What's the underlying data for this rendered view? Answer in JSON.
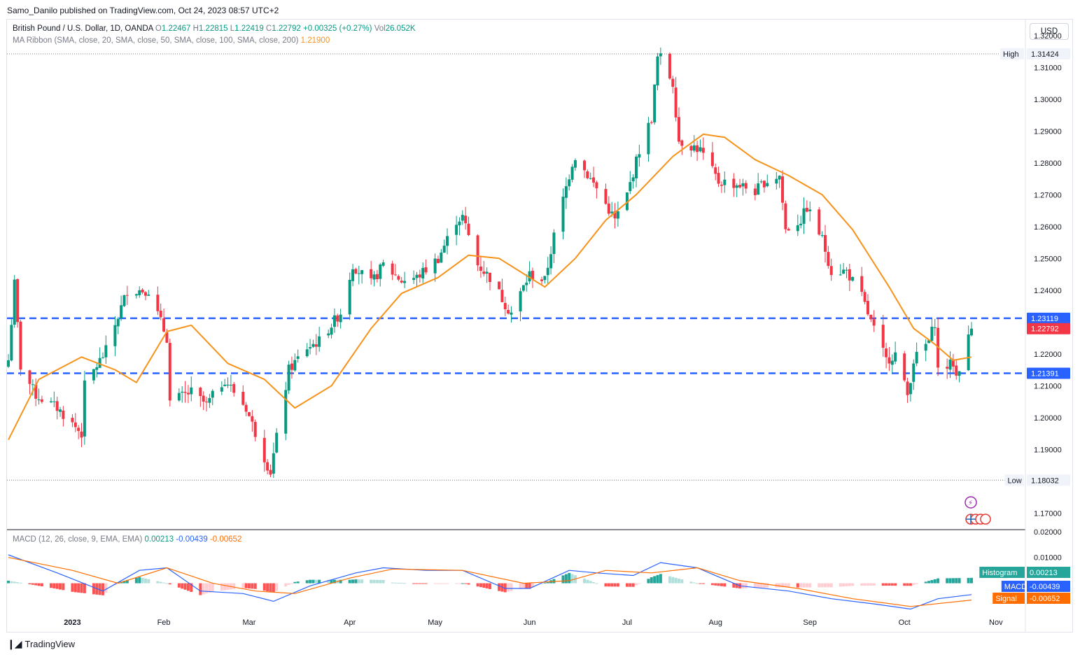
{
  "header": {
    "publisher_line": "Samo_Danilo published on TradingView.com, Oct 24, 2023 08:57 UTC+2"
  },
  "legend": {
    "symbol": "British Pound / U.S. Dollar, 1D, OANDA",
    "open_label": "O",
    "open": "1.22467",
    "high_label": "H",
    "high": "1.22815",
    "low_label": "L",
    "low": "1.22419",
    "close_label": "C",
    "close": "1.22792",
    "change": "+0.00325 (+0.27%)",
    "vol_label": "Vol",
    "vol": "26.052K",
    "ma_label": "MA Ribbon (SMA, close, 20, SMA, close, 50, SMA, close, 100, SMA, close, 200)",
    "ma_value": "1.21900",
    "macd_label": "MACD (12, 26, close, 9, EMA, EMA)",
    "macd_hist": "0.00213",
    "macd_line": "-0.00439",
    "macd_signal": "-0.00652"
  },
  "currency_button": "USD",
  "footer": {
    "brand": "TradingView"
  },
  "colors": {
    "up": "#089981",
    "down": "#f23645",
    "ma": "#f7931a",
    "macd": "#2962ff",
    "signal": "#ff6d00",
    "level": "#2962ff",
    "hist_up_strong": "#26a69a",
    "hist_up_weak": "#b2dfdb",
    "hist_down_strong": "#ff5252",
    "hist_down_weak": "#ffcdd2"
  },
  "chart_data": [
    {
      "type": "candlestick",
      "y_axis": {
        "min": 1.165,
        "max": 1.325,
        "ticks": [
          "1.17000",
          "1.18000",
          "1.19000",
          "1.20000",
          "1.21000",
          "1.22000",
          "1.23000",
          "1.24000",
          "1.25000",
          "1.26000",
          "1.27000",
          "1.28000",
          "1.29000",
          "1.30000",
          "1.31000",
          "1.32000"
        ]
      },
      "x_axis": {
        "labels": [
          "2023",
          "Feb",
          "Mar",
          "Apr",
          "May",
          "Jun",
          "Jul",
          "Aug",
          "Sep",
          "Oct",
          "Nov"
        ],
        "label_dates": [
          "2023-01-02",
          "2023-02-01",
          "2023-03-01",
          "2023-04-03",
          "2023-05-01",
          "2023-06-01",
          "2023-07-03",
          "2023-08-01",
          "2023-09-01",
          "2023-10-02",
          "2023-11-01"
        ]
      },
      "date_range": [
        "2022-12-12",
        "2023-10-24"
      ],
      "high_marker": {
        "label": "High",
        "value": "1.31424"
      },
      "low_marker": {
        "label": "Low",
        "value": "1.18032"
      },
      "levels": [
        {
          "value": "1.23119"
        },
        {
          "value": "1.21391"
        }
      ],
      "last_price": "1.22792",
      "close_path": [
        {
          "date": "2022-12-12",
          "close": 1.218
        },
        {
          "date": "2022-12-14",
          "close": 1.242
        },
        {
          "date": "2022-12-16",
          "close": 1.216
        },
        {
          "date": "2022-12-21",
          "close": 1.207
        },
        {
          "date": "2022-12-28",
          "close": 1.203
        },
        {
          "date": "2023-01-05",
          "close": 1.195
        },
        {
          "date": "2023-01-06",
          "close": 1.21
        },
        {
          "date": "2023-01-13",
          "close": 1.221
        },
        {
          "date": "2023-01-20",
          "close": 1.24
        },
        {
          "date": "2023-01-27",
          "close": 1.24
        },
        {
          "date": "2023-02-02",
          "close": 1.225
        },
        {
          "date": "2023-02-03",
          "close": 1.205
        },
        {
          "date": "2023-02-10",
          "close": 1.208
        },
        {
          "date": "2023-02-15",
          "close": 1.204
        },
        {
          "date": "2023-02-21",
          "close": 1.212
        },
        {
          "date": "2023-02-28",
          "close": 1.203
        },
        {
          "date": "2023-03-07",
          "close": 1.185
        },
        {
          "date": "2023-03-08",
          "close": 1.183
        },
        {
          "date": "2023-03-14",
          "close": 1.215
        },
        {
          "date": "2023-03-20",
          "close": 1.222
        },
        {
          "date": "2023-03-24",
          "close": 1.224
        },
        {
          "date": "2023-03-31",
          "close": 1.233
        },
        {
          "date": "2023-04-04",
          "close": 1.248
        },
        {
          "date": "2023-04-10",
          "close": 1.242
        },
        {
          "date": "2023-04-14",
          "close": 1.248
        },
        {
          "date": "2023-04-20",
          "close": 1.243
        },
        {
          "date": "2023-04-25",
          "close": 1.244
        },
        {
          "date": "2023-05-02",
          "close": 1.25
        },
        {
          "date": "2023-05-08",
          "close": 1.262
        },
        {
          "date": "2023-05-10",
          "close": 1.263
        },
        {
          "date": "2023-05-15",
          "close": 1.248
        },
        {
          "date": "2023-05-19",
          "close": 1.244
        },
        {
          "date": "2023-05-25",
          "close": 1.234
        },
        {
          "date": "2023-05-26",
          "close": 1.233
        },
        {
          "date": "2023-06-01",
          "close": 1.245
        },
        {
          "date": "2023-06-06",
          "close": 1.243
        },
        {
          "date": "2023-06-09",
          "close": 1.257
        },
        {
          "date": "2023-06-15",
          "close": 1.28
        },
        {
          "date": "2023-06-16",
          "close": 1.282
        },
        {
          "date": "2023-06-23",
          "close": 1.272
        },
        {
          "date": "2023-06-29",
          "close": 1.262
        },
        {
          "date": "2023-07-03",
          "close": 1.27
        },
        {
          "date": "2023-07-07",
          "close": 1.284
        },
        {
          "date": "2023-07-11",
          "close": 1.294
        },
        {
          "date": "2023-07-13",
          "close": 1.313
        },
        {
          "date": "2023-07-14",
          "close": 1.313
        },
        {
          "date": "2023-07-18",
          "close": 1.305
        },
        {
          "date": "2023-07-20",
          "close": 1.287
        },
        {
          "date": "2023-07-25",
          "close": 1.285
        },
        {
          "date": "2023-07-27",
          "close": 1.284
        },
        {
          "date": "2023-08-02",
          "close": 1.274
        },
        {
          "date": "2023-08-04",
          "close": 1.274
        },
        {
          "date": "2023-08-09",
          "close": 1.273
        },
        {
          "date": "2023-08-14",
          "close": 1.271
        },
        {
          "date": "2023-08-17",
          "close": 1.274
        },
        {
          "date": "2023-08-22",
          "close": 1.276
        },
        {
          "date": "2023-08-24",
          "close": 1.259
        },
        {
          "date": "2023-08-29",
          "close": 1.262
        },
        {
          "date": "2023-08-31",
          "close": 1.266
        },
        {
          "date": "2023-09-05",
          "close": 1.256
        },
        {
          "date": "2023-09-08",
          "close": 1.246
        },
        {
          "date": "2023-09-13",
          "close": 1.246
        },
        {
          "date": "2023-09-18",
          "close": 1.238
        },
        {
          "date": "2023-09-21",
          "close": 1.23
        },
        {
          "date": "2023-09-26",
          "close": 1.218
        },
        {
          "date": "2023-09-29",
          "close": 1.22
        },
        {
          "date": "2023-10-03",
          "close": 1.207
        },
        {
          "date": "2023-10-05",
          "close": 1.218
        },
        {
          "date": "2023-10-10",
          "close": 1.224
        },
        {
          "date": "2023-10-12",
          "close": 1.23
        },
        {
          "date": "2023-10-13",
          "close": 1.215
        },
        {
          "date": "2023-10-18",
          "close": 1.217
        },
        {
          "date": "2023-10-19",
          "close": 1.213
        },
        {
          "date": "2023-10-23",
          "close": 1.225
        },
        {
          "date": "2023-10-24",
          "close": 1.2279
        }
      ],
      "ma20_path": [
        {
          "date": "2022-12-12",
          "value": 1.193
        },
        {
          "date": "2022-12-22",
          "value": 1.212
        },
        {
          "date": "2023-01-05",
          "value": 1.219
        },
        {
          "date": "2023-01-16",
          "value": 1.215
        },
        {
          "date": "2023-01-23",
          "value": 1.211
        },
        {
          "date": "2023-02-02",
          "value": 1.227
        },
        {
          "date": "2023-02-10",
          "value": 1.229
        },
        {
          "date": "2023-02-22",
          "value": 1.217
        },
        {
          "date": "2023-03-06",
          "value": 1.212
        },
        {
          "date": "2023-03-16",
          "value": 1.203
        },
        {
          "date": "2023-03-28",
          "value": 1.21
        },
        {
          "date": "2023-04-10",
          "value": 1.228
        },
        {
          "date": "2023-04-20",
          "value": 1.239
        },
        {
          "date": "2023-05-02",
          "value": 1.244
        },
        {
          "date": "2023-05-12",
          "value": 1.251
        },
        {
          "date": "2023-05-22",
          "value": 1.25
        },
        {
          "date": "2023-06-06",
          "value": 1.241
        },
        {
          "date": "2023-06-16",
          "value": 1.25
        },
        {
          "date": "2023-06-26",
          "value": 1.262
        },
        {
          "date": "2023-07-06",
          "value": 1.27
        },
        {
          "date": "2023-07-18",
          "value": 1.282
        },
        {
          "date": "2023-07-28",
          "value": 1.289
        },
        {
          "date": "2023-08-04",
          "value": 1.288
        },
        {
          "date": "2023-08-14",
          "value": 1.281
        },
        {
          "date": "2023-08-25",
          "value": 1.276
        },
        {
          "date": "2023-09-05",
          "value": 1.27
        },
        {
          "date": "2023-09-15",
          "value": 1.259
        },
        {
          "date": "2023-09-27",
          "value": 1.241
        },
        {
          "date": "2023-10-05",
          "value": 1.228
        },
        {
          "date": "2023-10-12",
          "value": 1.223
        },
        {
          "date": "2023-10-18",
          "value": 1.218
        },
        {
          "date": "2023-10-24",
          "value": 1.219
        }
      ]
    },
    {
      "type": "macd",
      "y_axis": {
        "min": -0.0115,
        "max": 0.0205,
        "ticks": [
          "0.02000",
          "0.01000"
        ]
      },
      "histogram_last": "0.00213",
      "macd_last": "-0.00439",
      "signal_last": "-0.00652",
      "labels": {
        "histogram": "Histogram",
        "macd": "MACD",
        "signal": "Signal"
      },
      "macd_path": [
        {
          "date": "2022-12-12",
          "value": 0.011
        },
        {
          "date": "2022-12-28",
          "value": 0.004
        },
        {
          "date": "2023-01-12",
          "value": -0.003
        },
        {
          "date": "2023-01-24",
          "value": 0.005
        },
        {
          "date": "2023-02-02",
          "value": 0.006
        },
        {
          "date": "2023-02-13",
          "value": -0.003
        },
        {
          "date": "2023-02-27",
          "value": -0.004
        },
        {
          "date": "2023-03-09",
          "value": -0.007
        },
        {
          "date": "2023-03-21",
          "value": -0.001
        },
        {
          "date": "2023-04-05",
          "value": 0.004
        },
        {
          "date": "2023-04-14",
          "value": 0.006
        },
        {
          "date": "2023-04-28",
          "value": 0.005
        },
        {
          "date": "2023-05-10",
          "value": 0.005
        },
        {
          "date": "2023-05-24",
          "value": -0.002
        },
        {
          "date": "2023-06-01",
          "value": -0.002
        },
        {
          "date": "2023-06-14",
          "value": 0.005
        },
        {
          "date": "2023-06-23",
          "value": 0.004
        },
        {
          "date": "2023-07-05",
          "value": 0.003
        },
        {
          "date": "2023-07-14",
          "value": 0.008
        },
        {
          "date": "2023-07-26",
          "value": 0.006
        },
        {
          "date": "2023-08-09",
          "value": -0.001
        },
        {
          "date": "2023-08-25",
          "value": -0.003
        },
        {
          "date": "2023-09-08",
          "value": -0.006
        },
        {
          "date": "2023-09-22",
          "value": -0.008
        },
        {
          "date": "2023-10-04",
          "value": -0.01
        },
        {
          "date": "2023-10-13",
          "value": -0.006
        },
        {
          "date": "2023-10-24",
          "value": -0.0044
        }
      ],
      "signal_path": [
        {
          "date": "2022-12-12",
          "value": 0.01
        },
        {
          "date": "2023-01-02",
          "value": 0.005
        },
        {
          "date": "2023-01-17",
          "value": 0.0
        },
        {
          "date": "2023-02-02",
          "value": 0.006
        },
        {
          "date": "2023-02-17",
          "value": 0.0
        },
        {
          "date": "2023-03-03",
          "value": -0.003
        },
        {
          "date": "2023-03-16",
          "value": -0.004
        },
        {
          "date": "2023-04-03",
          "value": 0.002
        },
        {
          "date": "2023-04-17",
          "value": 0.0055
        },
        {
          "date": "2023-05-10",
          "value": 0.005
        },
        {
          "date": "2023-05-30",
          "value": 0.0
        },
        {
          "date": "2023-06-14",
          "value": 0.001
        },
        {
          "date": "2023-06-26",
          "value": 0.005
        },
        {
          "date": "2023-07-11",
          "value": 0.004
        },
        {
          "date": "2023-07-26",
          "value": 0.006
        },
        {
          "date": "2023-08-09",
          "value": 0.001
        },
        {
          "date": "2023-08-28",
          "value": -0.002
        },
        {
          "date": "2023-09-15",
          "value": -0.006
        },
        {
          "date": "2023-10-04",
          "value": -0.009
        },
        {
          "date": "2023-10-24",
          "value": -0.0065
        }
      ]
    }
  ]
}
